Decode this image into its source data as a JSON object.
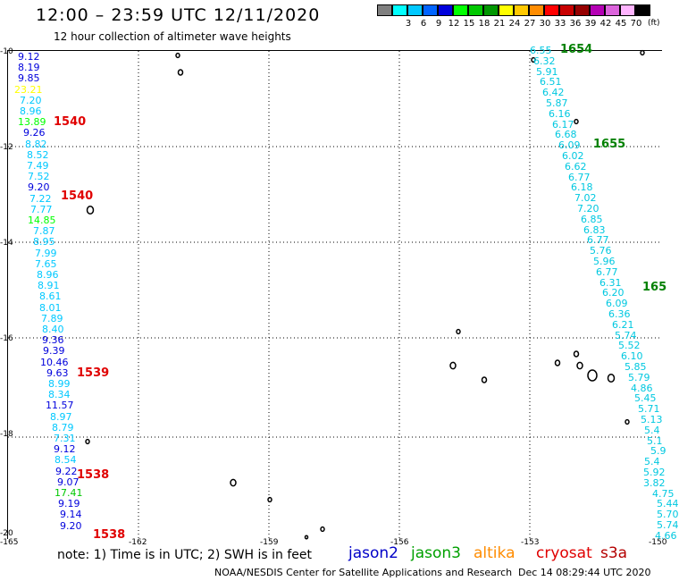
{
  "header": {
    "title": "12:00 – 23:59 UTC 12/11/2020",
    "subtitle": "12 hour collection of altimeter wave heights"
  },
  "legend": {
    "swatches": [
      {
        "color": "#7f7f7f",
        "label": ""
      },
      {
        "color": "#00ffff",
        "label": "3"
      },
      {
        "color": "#00c8ff",
        "label": "6"
      },
      {
        "color": "#0064ff",
        "label": "9"
      },
      {
        "color": "#0000dc",
        "label": "12"
      },
      {
        "color": "#00ff00",
        "label": "15"
      },
      {
        "color": "#00c800",
        "label": "18"
      },
      {
        "color": "#009600",
        "label": "21"
      },
      {
        "color": "#ffff00",
        "label": "24"
      },
      {
        "color": "#ffc800",
        "label": "27"
      },
      {
        "color": "#ff8c00",
        "label": "30"
      },
      {
        "color": "#ff0000",
        "label": "33"
      },
      {
        "color": "#c80000",
        "label": "36"
      },
      {
        "color": "#960000",
        "label": "39"
      },
      {
        "color": "#b400b4",
        "label": "42"
      },
      {
        "color": "#dc64dc",
        "label": "45"
      },
      {
        "color": "#ffb4ff",
        "label": "70"
      },
      {
        "color": "#000000",
        "label": ""
      }
    ],
    "unit": "(ft)"
  },
  "map": {
    "lon_ticks": [
      "-165",
      "-162",
      "-159",
      "-156",
      "-153",
      "-150"
    ],
    "lat_ticks": [
      "-10",
      "-12",
      "-14",
      "-16",
      "-18",
      "-20"
    ],
    "lon_range": [
      -165,
      -150
    ],
    "lat_range": [
      -20,
      -10
    ],
    "grid": "dotted"
  },
  "track_left": {
    "longitude": -164.2,
    "colors": {
      "blue": "#0000dc",
      "navy": "#0000c8",
      "cyan": "#00c8ff",
      "yellow": "#ffff00",
      "green": "#00ff00",
      "dkgreen": "#00c800"
    },
    "values": [
      {
        "v": "9.12",
        "c": "blue"
      },
      {
        "v": "8.19",
        "c": "blue"
      },
      {
        "v": "9.85",
        "c": "blue"
      },
      {
        "v": "23.21",
        "c": "yellow"
      },
      {
        "v": "7.20",
        "c": "cyan"
      },
      {
        "v": "8.96",
        "c": "cyan"
      },
      {
        "v": "13.89",
        "c": "green"
      },
      {
        "v": "9.26",
        "c": "blue"
      },
      {
        "v": "8.82",
        "c": "cyan"
      },
      {
        "v": "8.52",
        "c": "cyan"
      },
      {
        "v": "7.49",
        "c": "cyan"
      },
      {
        "v": "7.52",
        "c": "cyan"
      },
      {
        "v": "9.20",
        "c": "blue"
      },
      {
        "v": "7.22",
        "c": "cyan"
      },
      {
        "v": "7.77",
        "c": "cyan"
      },
      {
        "v": "14.85",
        "c": "green"
      },
      {
        "v": "7.87",
        "c": "cyan"
      },
      {
        "v": "8.95",
        "c": "cyan"
      },
      {
        "v": "7.99",
        "c": "cyan"
      },
      {
        "v": "7.65",
        "c": "cyan"
      },
      {
        "v": "8.96",
        "c": "cyan"
      },
      {
        "v": "8.91",
        "c": "cyan"
      },
      {
        "v": "8.61",
        "c": "cyan"
      },
      {
        "v": "8.01",
        "c": "cyan"
      },
      {
        "v": "7.89",
        "c": "cyan"
      },
      {
        "v": "8.40",
        "c": "cyan"
      },
      {
        "v": "9.36",
        "c": "blue"
      },
      {
        "v": "9.39",
        "c": "blue"
      },
      {
        "v": "10.46",
        "c": "blue"
      },
      {
        "v": "9.63",
        "c": "blue"
      },
      {
        "v": "8.99",
        "c": "cyan"
      },
      {
        "v": "8.34",
        "c": "cyan"
      },
      {
        "v": "11.57",
        "c": "blue"
      },
      {
        "v": "8.97",
        "c": "cyan"
      },
      {
        "v": "8.79",
        "c": "cyan"
      },
      {
        "v": "7.31",
        "c": "cyan"
      },
      {
        "v": "9.12",
        "c": "blue"
      },
      {
        "v": "8.54",
        "c": "cyan"
      },
      {
        "v": "9.22",
        "c": "blue"
      },
      {
        "v": "9.07",
        "c": "blue"
      },
      {
        "v": "17.41",
        "c": "dkgreen"
      },
      {
        "v": "9.19",
        "c": "blue"
      },
      {
        "v": "9.14",
        "c": "blue"
      },
      {
        "v": "9.20",
        "c": "blue"
      }
    ],
    "times": [
      {
        "label": "1540",
        "color": "#e00000"
      },
      {
        "label": "1540",
        "color": "#e00000"
      },
      {
        "label": "1539",
        "color": "#e00000"
      },
      {
        "label": "1538",
        "color": "#e00000"
      },
      {
        "label": "1538",
        "color": "#e00000"
      }
    ]
  },
  "track_right": {
    "color": "#00c8e0",
    "values": [
      "6.55",
      "6.32",
      "5.91",
      "6.51",
      "6.42",
      "5.87",
      "6.16",
      "6.17",
      "6.68",
      "6.09",
      "6.02",
      "6.62",
      "6.77",
      "6.18",
      "7.02",
      "7.20",
      "6.85",
      "6.83",
      "6.77",
      "5.76",
      "5.96",
      "6.77",
      "6.31",
      "6.20",
      "6.09",
      "6.36",
      "6.21",
      "5.74",
      "5.52",
      "6.10",
      "5.85",
      "5.79",
      "4.86",
      "5.45",
      "5.71",
      "5.13",
      "5.4",
      "5.1",
      "5.9",
      "5.4",
      "5.92",
      "3.82",
      "4.75",
      "5.44",
      "5.70",
      "5.74",
      "4.66"
    ],
    "times": [
      {
        "label": "1654",
        "color": "#008000"
      },
      {
        "label": "1655",
        "color": "#008000"
      },
      {
        "label": "165",
        "color": "#008000"
      }
    ]
  },
  "footer": {
    "note": "note:  1) Time is in UTC;  2) SWH is in feet",
    "satellites": [
      {
        "name": "jason2",
        "color": "#0000c8"
      },
      {
        "name": "jason3",
        "color": "#00a000"
      },
      {
        "name": "altika",
        "color": "#ff8c00"
      },
      {
        "name": "cryosat",
        "color": "#e00000"
      },
      {
        "name": "s3a",
        "color": "#b40000"
      }
    ],
    "credit": "NOAA/NESDIS Center for Satellite Applications and Research",
    "timestamp": "Dec 14 08:29:44 UTC 2020"
  }
}
